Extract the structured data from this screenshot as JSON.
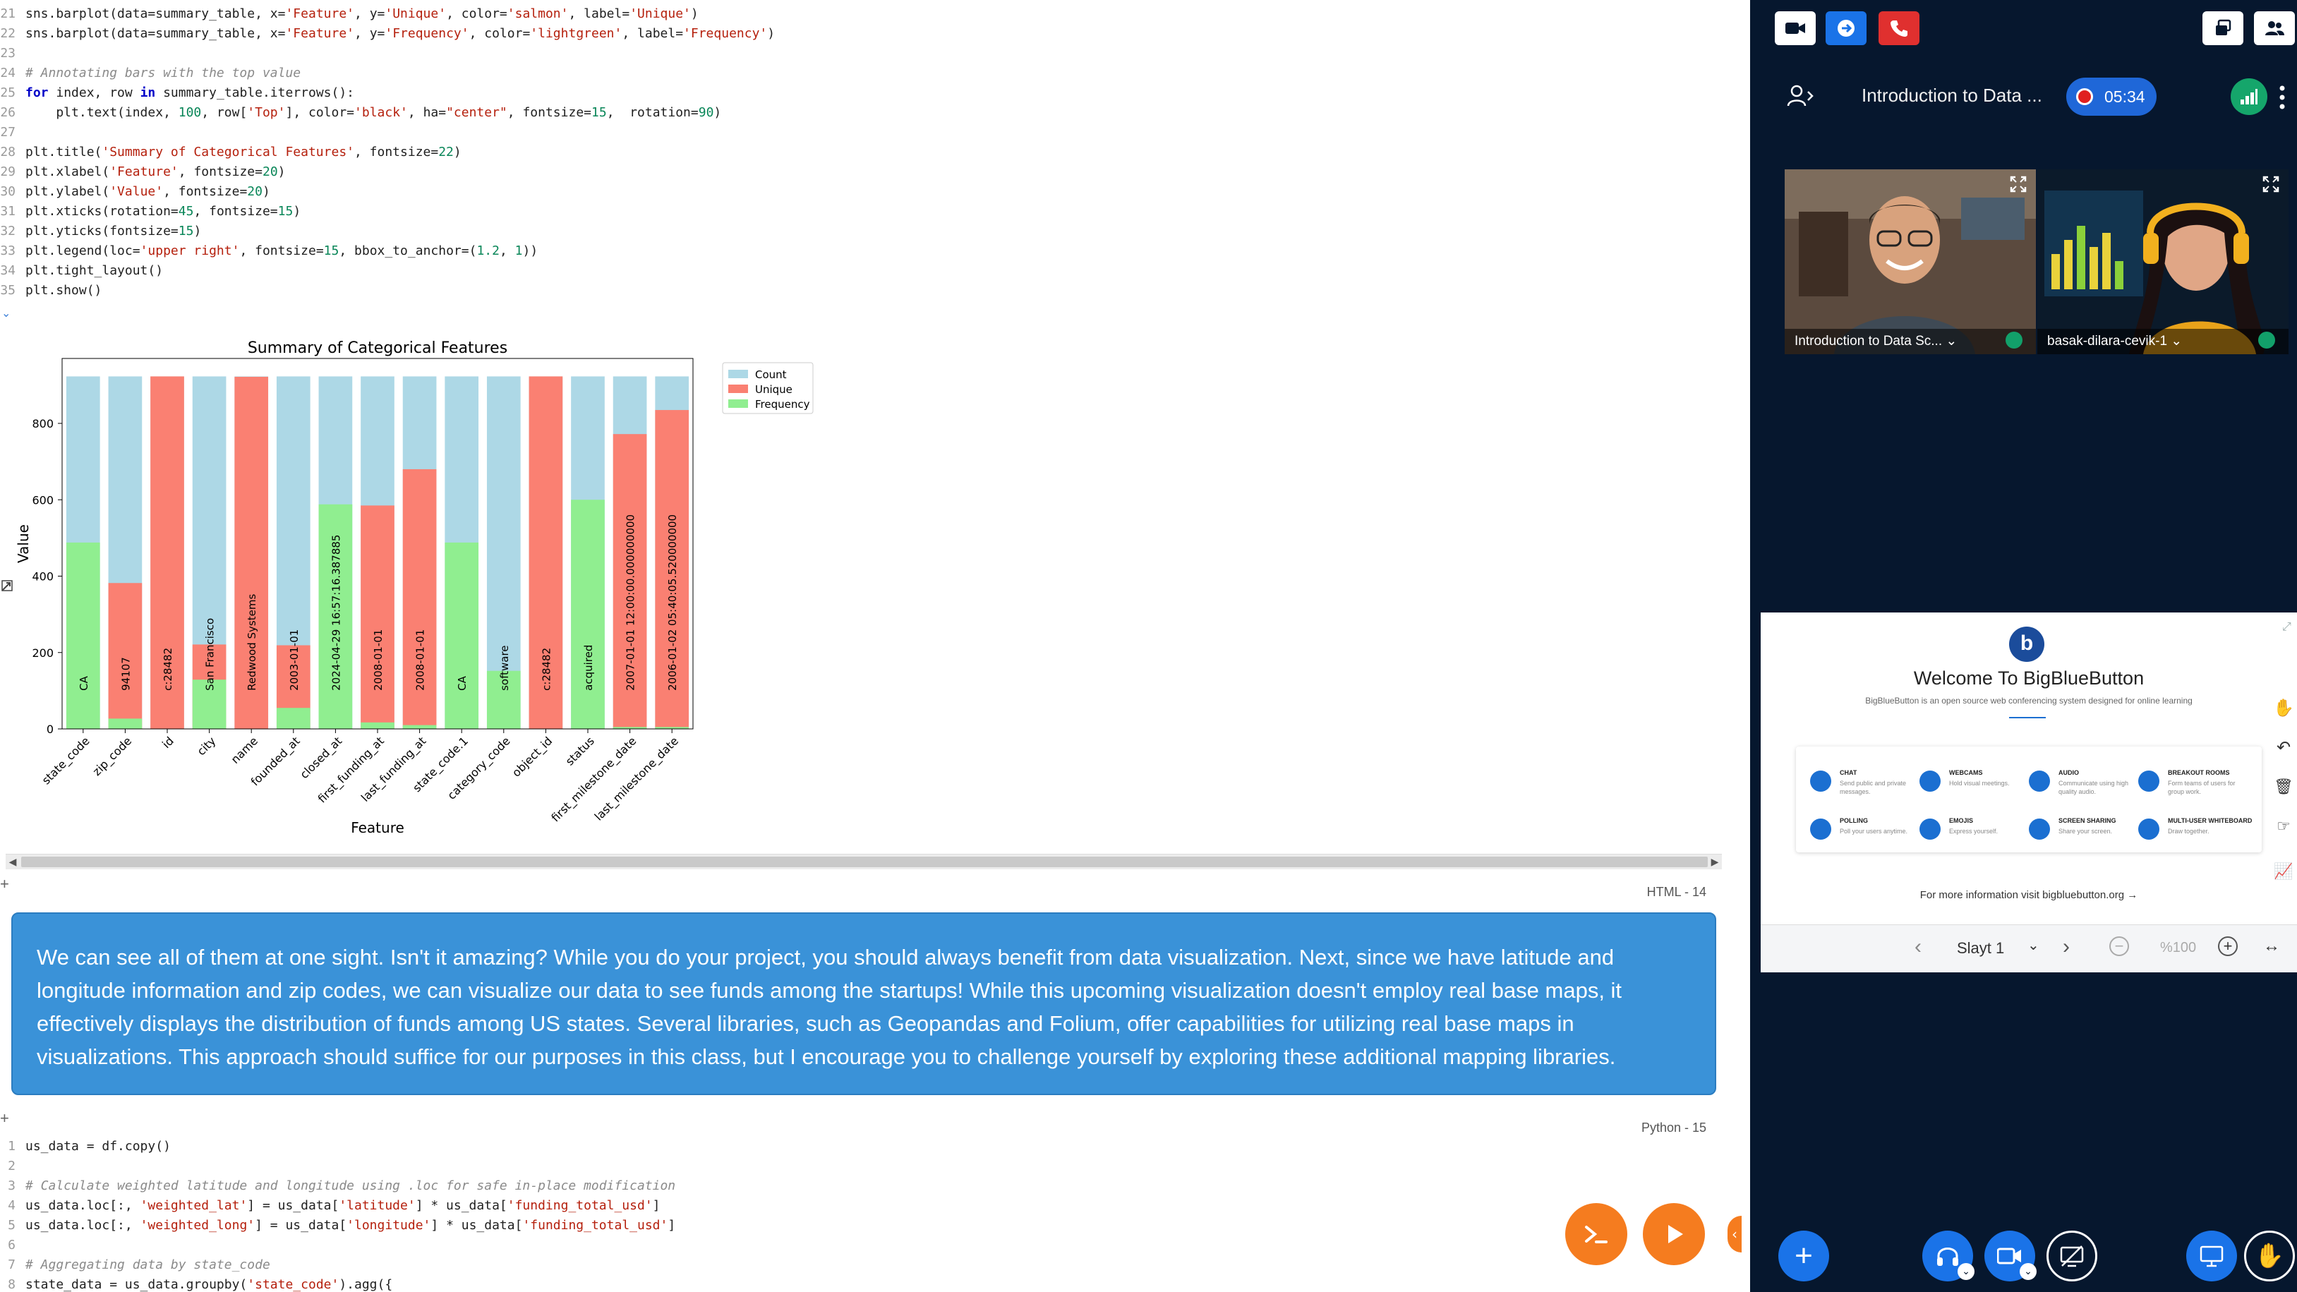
{
  "notebook": {
    "code_top": [
      {
        "n": "21",
        "text": "sns.barplot(data=summary_table, x='Feature', y='Unique', color='salmon', label='Unique')"
      },
      {
        "n": "22",
        "text": "sns.barplot(data=summary_table, x='Feature', y='Frequency', color='lightgreen', label='Frequency')"
      },
      {
        "n": "23",
        "text": ""
      },
      {
        "n": "24",
        "text": "# Annotating bars with the top value"
      },
      {
        "n": "25",
        "text": "for index, row in summary_table.iterrows():"
      },
      {
        "n": "26",
        "text": "    plt.text(index, 100, row['Top'], color='black', ha=\"center\", fontsize=15,  rotation=90)"
      },
      {
        "n": "27",
        "text": ""
      },
      {
        "n": "28",
        "text": "plt.title('Summary of Categorical Features', fontsize=22)"
      },
      {
        "n": "29",
        "text": "plt.xlabel('Feature', fontsize=20)"
      },
      {
        "n": "30",
        "text": "plt.ylabel('Value', fontsize=20)"
      },
      {
        "n": "31",
        "text": "plt.xticks(rotation=45, fontsize=15)"
      },
      {
        "n": "32",
        "text": "plt.yticks(fontsize=15)"
      },
      {
        "n": "33",
        "text": "plt.legend(loc='upper right', fontsize=15, bbox_to_anchor=(1.2, 1))"
      },
      {
        "n": "34",
        "text": "plt.tight_layout()"
      },
      {
        "n": "35",
        "text": "plt.show()"
      }
    ],
    "cell_tag_html": "HTML - 14",
    "cell_tag_python": "Python - 15",
    "message": "We can see all of them at one sight. Isn't it amazing? While you do your project, you should always benefit from data visualization. Next, since we have latitude and longitude information and zip codes, we can visualize our data to see funds among the startups! While this upcoming visualization doesn't employ real base maps, it effectively displays the distribution of funds among US states. Several libraries, such as Geopandas and Folium, offer capabilities for utilizing real base maps in visualizations. This approach should suffice for our purposes in this class, but I encourage you to challenge yourself by exploring these additional mapping libraries.",
    "code_bottom": [
      {
        "n": "1",
        "text": "us_data = df.copy()"
      },
      {
        "n": "2",
        "text": ""
      },
      {
        "n": "3",
        "text": "# Calculate weighted latitude and longitude using .loc for safe in-place modification"
      },
      {
        "n": "4",
        "text": "us_data.loc[:, 'weighted_lat'] = us_data['latitude'] * us_data['funding_total_usd']"
      },
      {
        "n": "5",
        "text": "us_data.loc[:, 'weighted_long'] = us_data['longitude'] * us_data['funding_total_usd']"
      },
      {
        "n": "6",
        "text": ""
      },
      {
        "n": "7",
        "text": "# Aggregating data by state_code"
      },
      {
        "n": "8",
        "text": "state_data = us_data.groupby('state_code').agg({"
      }
    ]
  },
  "chart_data": {
    "type": "bar",
    "title": "Summary of Categorical Features",
    "xlabel": "Feature",
    "ylabel": "Value",
    "ylim": [
      0,
      970
    ],
    "yticks": [
      0,
      200,
      400,
      600,
      800
    ],
    "legend_placement": "outside-top-right",
    "categories": [
      "state_code",
      "zip_code",
      "id",
      "city",
      "name",
      "founded_at",
      "closed_at",
      "first_funding_at",
      "last_funding_at",
      "state_code.1",
      "category_code",
      "object_id",
      "status",
      "first_milestone_date",
      "last_milestone_date"
    ],
    "series": [
      {
        "name": "Count",
        "color": "#add8e6",
        "values": [
          923,
          923,
          923,
          923,
          923,
          923,
          923,
          923,
          923,
          923,
          923,
          923,
          923,
          923,
          923
        ]
      },
      {
        "name": "Unique",
        "color": "#fa8072",
        "values": [
          0,
          382,
          923,
          221,
          922,
          219,
          0,
          585,
          680,
          0,
          0,
          923,
          0,
          772,
          835
        ]
      },
      {
        "name": "Frequency",
        "color": "#90ee90",
        "values": [
          488,
          27,
          0,
          129,
          0,
          55,
          588,
          17,
          10,
          488,
          152,
          0,
          600,
          5,
          5
        ]
      }
    ],
    "top_labels": [
      "CA",
      "94107",
      "c:28482",
      "San Francisco",
      "Redwood Systems",
      "2003-01-01",
      "2024-04-29 16:57:16.387885",
      "2008-01-01",
      "2008-01-01",
      "CA",
      "software",
      "c:28482",
      "acquired",
      "2007-01-01 12:00:00.000000000",
      "2006-01-02 05:40:05.520000000"
    ]
  },
  "meeting": {
    "title": "Introduction to Data ...",
    "timer": "05:34",
    "tiles": [
      {
        "name": "Introduction to Data Sc..."
      },
      {
        "name": "basak-dilara-cevik-1"
      }
    ],
    "presentation": {
      "heading": "Welcome To BigBlueButton",
      "subheading": "BigBlueButton is an open source web conferencing system designed for online learning",
      "features": [
        {
          "title": "CHAT",
          "desc": "Send public and private messages."
        },
        {
          "title": "WEBCAMS",
          "desc": "Hold visual meetings."
        },
        {
          "title": "AUDIO",
          "desc": "Communicate using high quality audio."
        },
        {
          "title": "BREAKOUT ROOMS",
          "desc": "Form teams of users for group work."
        },
        {
          "title": "POLLING",
          "desc": "Poll your users anytime."
        },
        {
          "title": "EMOJIS",
          "desc": "Express yourself."
        },
        {
          "title": "SCREEN SHARING",
          "desc": "Share your screen."
        },
        {
          "title": "MULTI-USER WHITEBOARD",
          "desc": "Draw together."
        }
      ],
      "footer": "For more information visit bigbluebutton.org →",
      "slide_select": "Slayt 1",
      "zoom": "%100"
    },
    "colors": {
      "panel": "#06172e",
      "accent": "#1f67d8",
      "danger": "#e0302f",
      "orange": "#f57c1f"
    }
  }
}
